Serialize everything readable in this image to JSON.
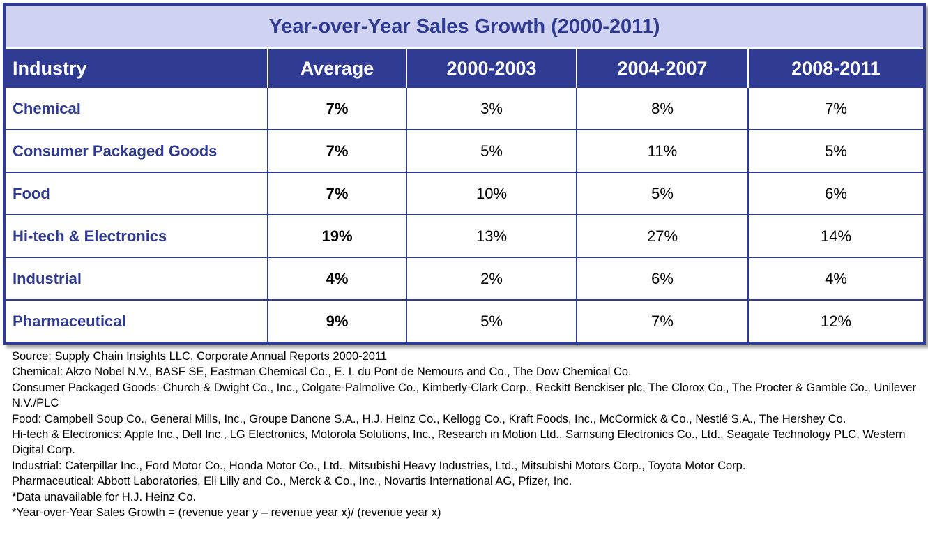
{
  "chart_data": {
    "type": "table",
    "title": "Year-over-Year Sales Growth (2000-2011)",
    "columns": [
      "Industry",
      "Average",
      "2000-2003",
      "2004-2007",
      "2008-2011"
    ],
    "rows": [
      {
        "industry": "Chemical",
        "average": "7%",
        "p2000_2003": "3%",
        "p2004_2007": "8%",
        "p2008_2011": "7%"
      },
      {
        "industry": "Consumer Packaged Goods",
        "average": "7%",
        "p2000_2003": "5%",
        "p2004_2007": "11%",
        "p2008_2011": "5%"
      },
      {
        "industry": "Food",
        "average": "7%",
        "p2000_2003": "10%",
        "p2004_2007": "5%",
        "p2008_2011": "6%"
      },
      {
        "industry": "Hi-tech & Electronics",
        "average": "19%",
        "p2000_2003": "13%",
        "p2004_2007": "27%",
        "p2008_2011": "14%"
      },
      {
        "industry": "Industrial",
        "average": "4%",
        "p2000_2003": "2%",
        "p2004_2007": "6%",
        "p2008_2011": "4%"
      },
      {
        "industry": "Pharmaceutical",
        "average": "9%",
        "p2000_2003": "5%",
        "p2004_2007": "7%",
        "p2008_2011": "12%"
      }
    ],
    "colors": {
      "header_bg": "#2f3a93",
      "title_bg": "#cfd2f0",
      "accent_text": "#2f3a93"
    }
  },
  "notes": [
    "Source: Supply Chain Insights LLC, Corporate Annual Reports 2000-2011",
    "Chemical: Akzo Nobel N.V., BASF SE, Eastman Chemical Co., E. I. du Pont de Nemours and Co., The Dow Chemical Co.",
    "Consumer Packaged Goods: Church & Dwight Co., Inc., Colgate-Palmolive Co., Kimberly-Clark Corp., Reckitt Benckiser plc, The Clorox Co., The Procter & Gamble Co., Unilever N.V./PLC",
    "Food: Campbell Soup Co., General Mills, Inc., Groupe Danone S.A., H.J. Heinz Co., Kellogg Co., Kraft Foods, Inc., McCormick & Co., Nestlé S.A., The Hershey Co.",
    "Hi-tech & Electronics: Apple Inc., Dell Inc., LG Electronics, Motorola Solutions, Inc., Research in Motion Ltd., Samsung Electronics Co., Ltd., Seagate Technology PLC, Western Digital Corp.",
    "Industrial: Caterpillar Inc., Ford Motor Co., Honda Motor Co., Ltd., Mitsubishi Heavy Industries, Ltd., Mitsubishi Motors Corp., Toyota Motor Corp.",
    "Pharmaceutical: Abbott Laboratories, Eli Lilly and Co., Merck & Co., Inc., Novartis International AG, Pfizer, Inc.",
    "*Data unavailable for H.J. Heinz Co.",
    "*Year-over-Year Sales Growth = (revenue year y – revenue year x)/ (revenue year x)"
  ]
}
